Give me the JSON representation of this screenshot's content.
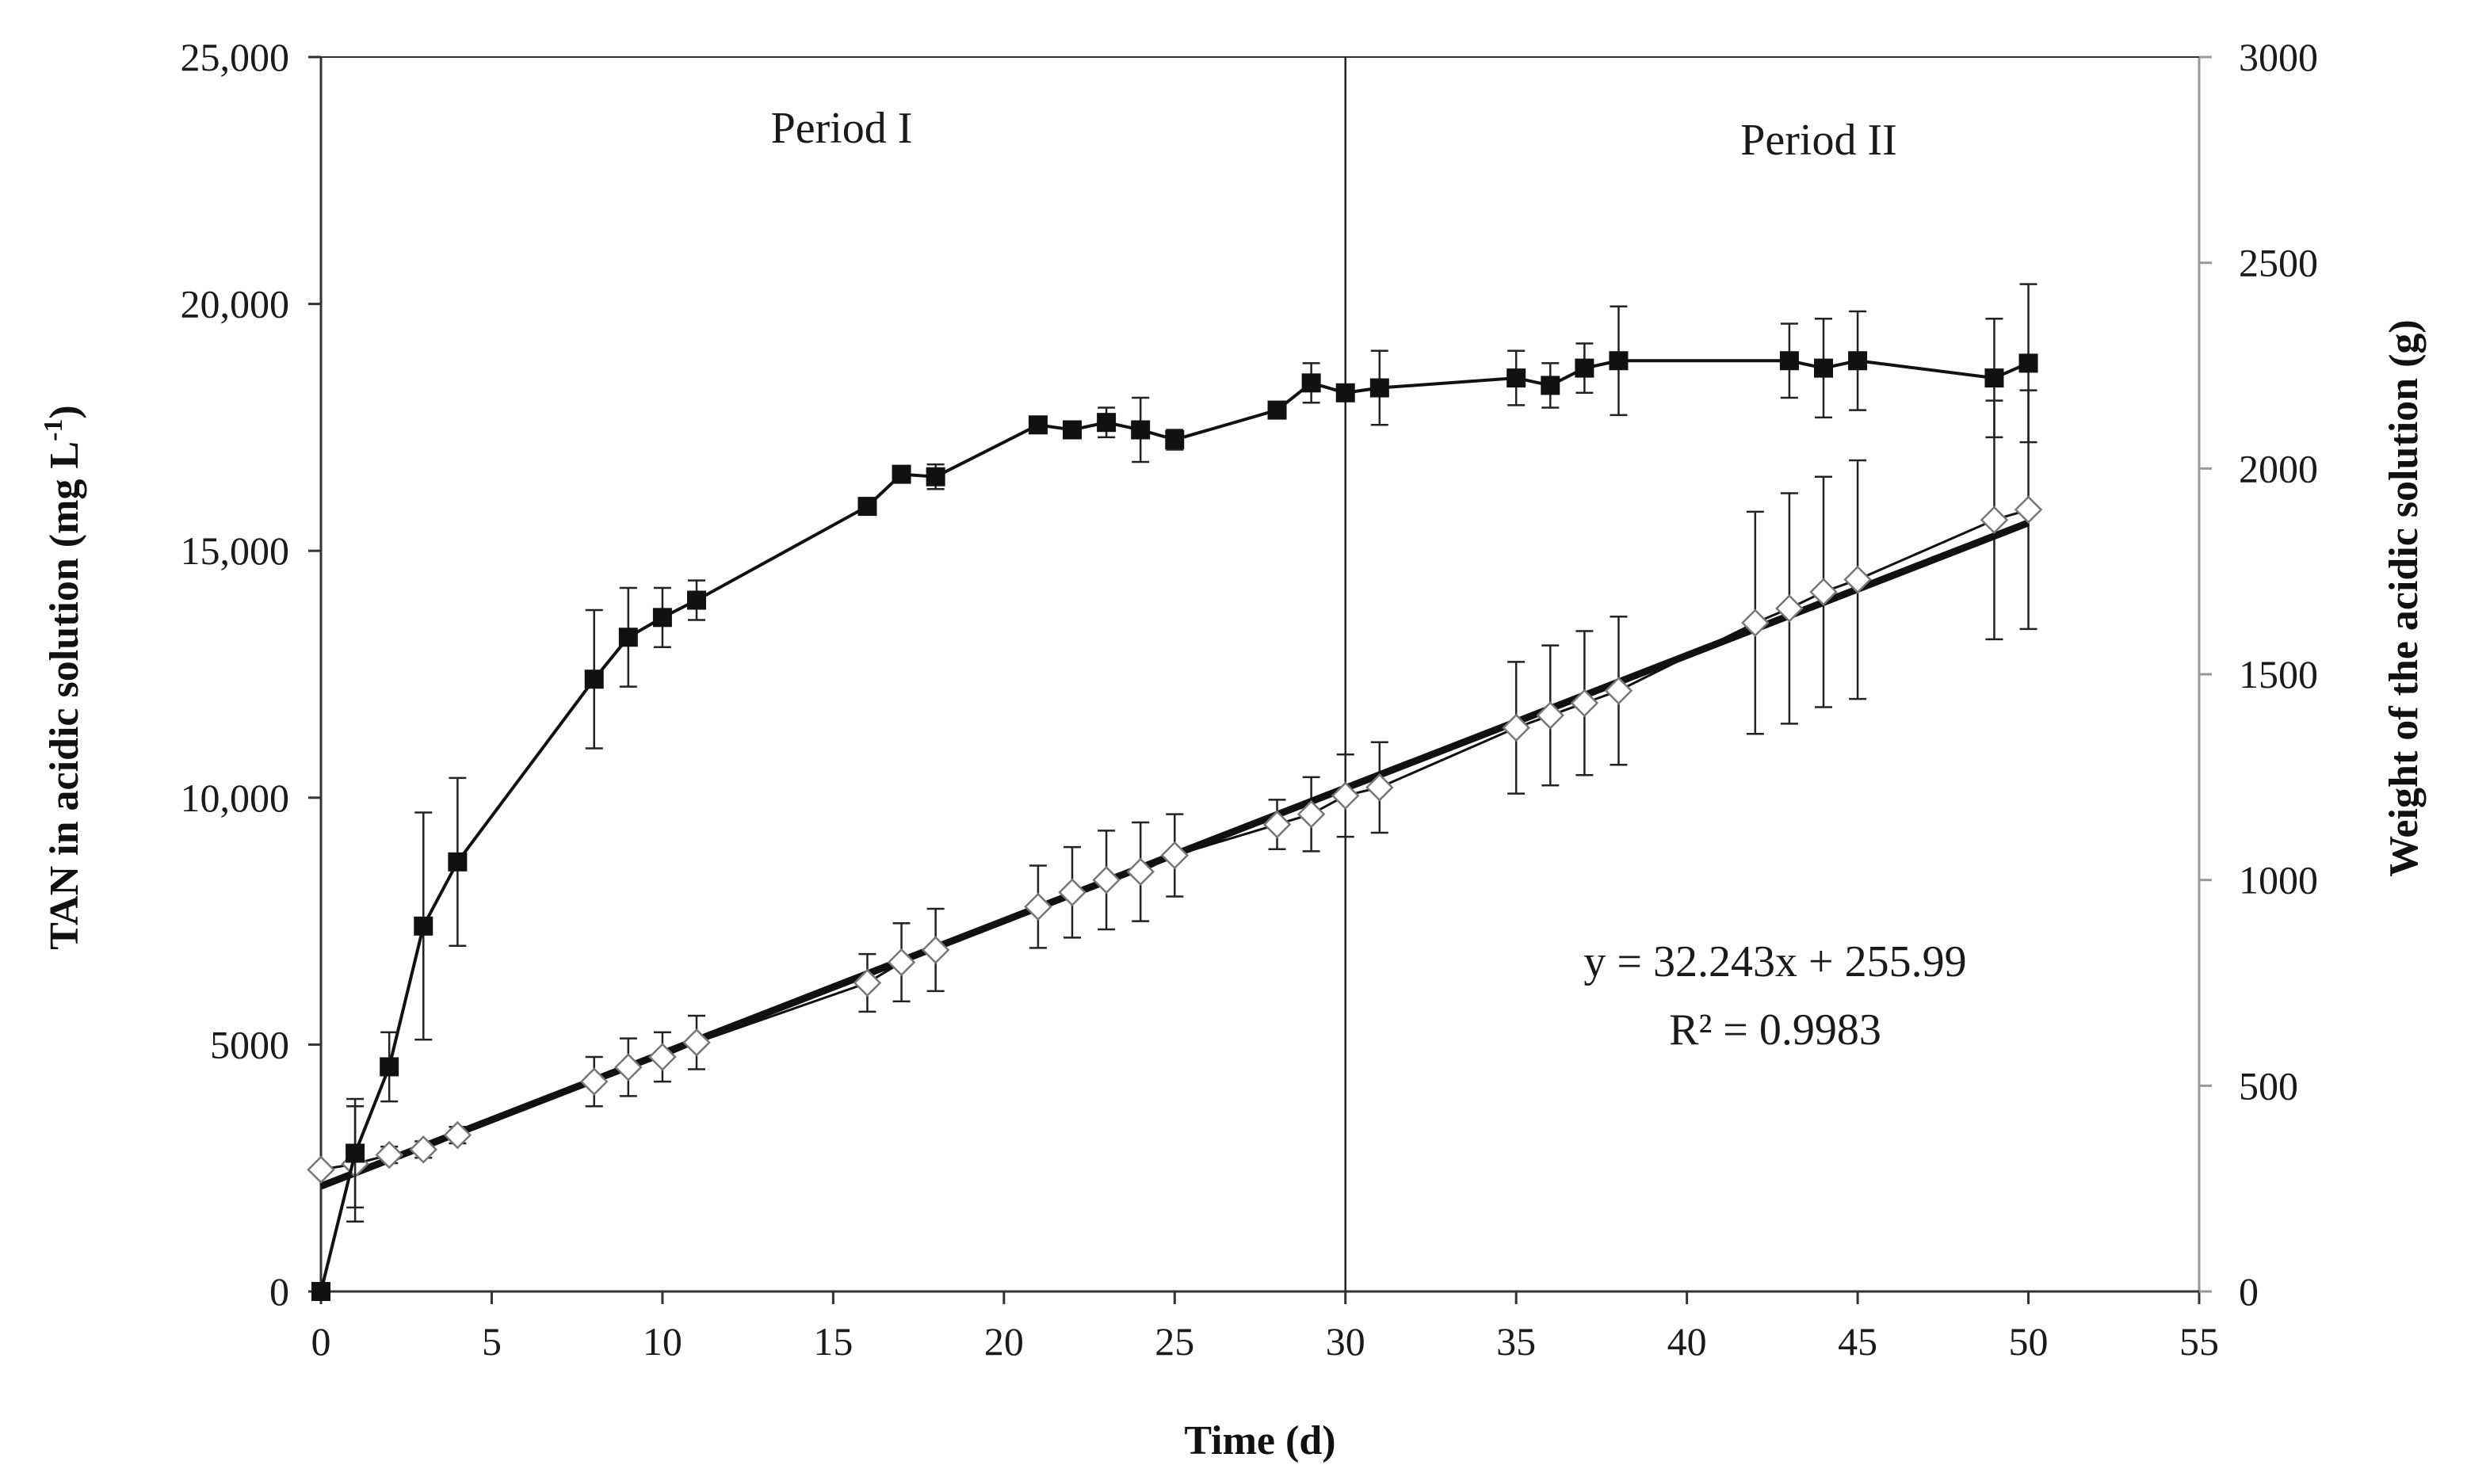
{
  "chart_data": {
    "type": "line",
    "title": "",
    "xlabel": "Time (d)",
    "ylabel_left_prefix": "TAN in acidic solution (mg L",
    "ylabel_left_sup": "-1",
    "ylabel_left_suffix": ")",
    "ylabel_right": "Weight of the acidic solution (g)",
    "xlim": [
      0,
      55
    ],
    "ylim_left": [
      0,
      25000
    ],
    "ylim_right": [
      0,
      3000
    ],
    "xticks": [
      0,
      5,
      10,
      15,
      20,
      25,
      30,
      35,
      40,
      45,
      50,
      55
    ],
    "xtick_labels": [
      "0",
      "5",
      "10",
      "15",
      "20",
      "25",
      "30",
      "35",
      "40",
      "45",
      "50",
      "55"
    ],
    "yticks_left": [
      0,
      5000,
      10000,
      15000,
      20000,
      25000
    ],
    "ytick_labels_left": [
      "0",
      "5000",
      "10,000",
      "15,000",
      "20,000",
      "25,000"
    ],
    "yticks_right": [
      0,
      500,
      1000,
      1500,
      2000,
      2500,
      3000
    ],
    "ytick_labels_right": [
      "0",
      "500",
      "1000",
      "1500",
      "2000",
      "2500",
      "3000"
    ],
    "grid": false,
    "divider_x": 30,
    "annotations": {
      "period_1": "Period I",
      "period_2": "Period II",
      "equation": "y = 32.243x + 255.99",
      "r_squared": "R² = 0.9983"
    },
    "series": [
      {
        "name": "TAN in acidic solution",
        "axis": "left",
        "marker": "filled-square",
        "points": [
          {
            "x": 0,
            "y": 0,
            "err": 0
          },
          {
            "x": 1,
            "y": 2800,
            "err": 1100
          },
          {
            "x": 2,
            "y": 4550,
            "err": 700
          },
          {
            "x": 3,
            "y": 7400,
            "err": 2300
          },
          {
            "x": 4,
            "y": 8700,
            "err": 1700
          },
          {
            "x": 8,
            "y": 12400,
            "err": 1400
          },
          {
            "x": 9,
            "y": 13250,
            "err": 1000
          },
          {
            "x": 10,
            "y": 13650,
            "err": 600
          },
          {
            "x": 11,
            "y": 14000,
            "err": 400
          },
          {
            "x": 16,
            "y": 15900,
            "err": 150
          },
          {
            "x": 17,
            "y": 16550,
            "err": 150
          },
          {
            "x": 18,
            "y": 16500,
            "err": 250
          },
          {
            "x": 21,
            "y": 17550,
            "err": 100
          },
          {
            "x": 22,
            "y": 17450,
            "err": 150
          },
          {
            "x": 23,
            "y": 17600,
            "err": 300
          },
          {
            "x": 24,
            "y": 17450,
            "err": 650
          },
          {
            "x": 25,
            "y": 17250,
            "err": 200
          },
          {
            "x": 28,
            "y": 17850,
            "err": 150
          },
          {
            "x": 29,
            "y": 18400,
            "err": 400
          },
          {
            "x": 30,
            "y": 18200,
            "err": 150
          },
          {
            "x": 31,
            "y": 18300,
            "err": 750
          },
          {
            "x": 35,
            "y": 18500,
            "err": 550
          },
          {
            "x": 36,
            "y": 18350,
            "err": 450
          },
          {
            "x": 37,
            "y": 18700,
            "err": 500
          },
          {
            "x": 38,
            "y": 18850,
            "err": 1100
          },
          {
            "x": 43,
            "y": 18850,
            "err": 750
          },
          {
            "x": 44,
            "y": 18700,
            "err": 1000
          },
          {
            "x": 45,
            "y": 18850,
            "err": 1000
          },
          {
            "x": 49,
            "y": 18500,
            "err": 1200
          },
          {
            "x": 50,
            "y": 18800,
            "err": 1600
          }
        ]
      },
      {
        "name": "Weight of the acidic solution",
        "axis": "right",
        "marker": "open-diamond",
        "points": [
          {
            "x": 0,
            "y": 296,
            "err": 0
          },
          {
            "x": 1,
            "y": 310,
            "err": 140
          },
          {
            "x": 2,
            "y": 332,
            "err": 20
          },
          {
            "x": 3,
            "y": 345,
            "err": 20
          },
          {
            "x": 4,
            "y": 380,
            "err": 20
          },
          {
            "x": 8,
            "y": 510,
            "err": 60
          },
          {
            "x": 9,
            "y": 545,
            "err": 70
          },
          {
            "x": 10,
            "y": 570,
            "err": 60
          },
          {
            "x": 11,
            "y": 605,
            "err": 65
          },
          {
            "x": 16,
            "y": 750,
            "err": 70
          },
          {
            "x": 17,
            "y": 800,
            "err": 95
          },
          {
            "x": 18,
            "y": 830,
            "err": 100
          },
          {
            "x": 21,
            "y": 935,
            "err": 100
          },
          {
            "x": 22,
            "y": 970,
            "err": 110
          },
          {
            "x": 23,
            "y": 1000,
            "err": 120
          },
          {
            "x": 24,
            "y": 1020,
            "err": 120
          },
          {
            "x": 25,
            "y": 1060,
            "err": 100
          },
          {
            "x": 28,
            "y": 1135,
            "err": 60
          },
          {
            "x": 29,
            "y": 1160,
            "err": 90
          },
          {
            "x": 30,
            "y": 1205,
            "err": 100
          },
          {
            "x": 31,
            "y": 1225,
            "err": 110
          },
          {
            "x": 35,
            "y": 1370,
            "err": 160
          },
          {
            "x": 36,
            "y": 1400,
            "err": 170
          },
          {
            "x": 37,
            "y": 1430,
            "err": 175
          },
          {
            "x": 38,
            "y": 1460,
            "err": 180
          },
          {
            "x": 42,
            "y": 1625,
            "err": 270
          },
          {
            "x": 43,
            "y": 1660,
            "err": 280
          },
          {
            "x": 44,
            "y": 1700,
            "err": 280
          },
          {
            "x": 45,
            "y": 1730,
            "err": 290
          },
          {
            "x": 49,
            "y": 1875,
            "err": 290
          },
          {
            "x": 50,
            "y": 1900,
            "err": 290
          }
        ]
      }
    ],
    "trendline": {
      "name": "Linear fit (weight)",
      "axis": "right",
      "slope": 32.243,
      "intercept": 255.99,
      "x_range": [
        0,
        50
      ]
    }
  }
}
